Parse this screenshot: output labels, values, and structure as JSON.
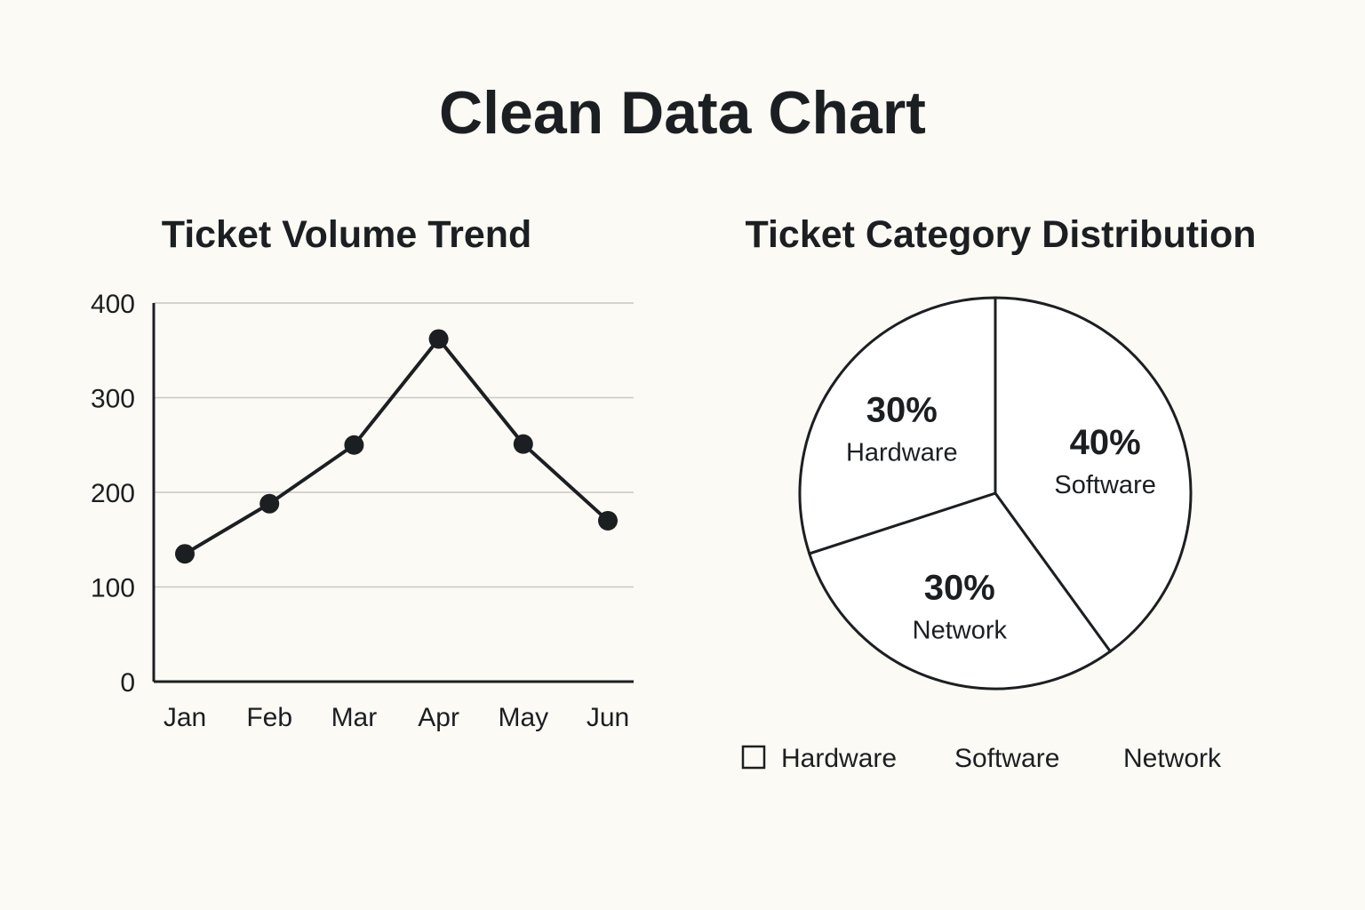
{
  "page": {
    "title": "Clean Data Chart"
  },
  "chart_data": [
    {
      "type": "line",
      "title": "Ticket Volume Trend",
      "xlabel": "",
      "ylabel": "",
      "categories": [
        "Jan",
        "Feb",
        "Mar",
        "Apr",
        "May",
        "Jun"
      ],
      "series": [
        {
          "values": [
            135,
            188,
            250,
            362,
            251,
            170
          ]
        }
      ],
      "ylim": [
        0,
        400
      ],
      "yticks": [
        "0",
        "100",
        "200",
        "300",
        "400"
      ],
      "ytick_values": [
        0,
        100,
        200,
        300,
        400
      ],
      "grid": true,
      "line_color": "#1c1f22",
      "grid_color": "#c8c8c4"
    },
    {
      "type": "pie",
      "title": "Ticket Category Distribution",
      "slices": [
        {
          "label": "Software",
          "value": 40,
          "display": "40%"
        },
        {
          "label": "Network",
          "value": 30,
          "display": "30%"
        },
        {
          "label": "Hardware",
          "value": 30,
          "display": "30%"
        }
      ],
      "legend": {
        "placement": "bottom",
        "items": [
          "Hardware",
          "Software",
          "Network"
        ]
      },
      "fill_color": "#ffffff",
      "stroke_color": "#1c1f22"
    }
  ]
}
